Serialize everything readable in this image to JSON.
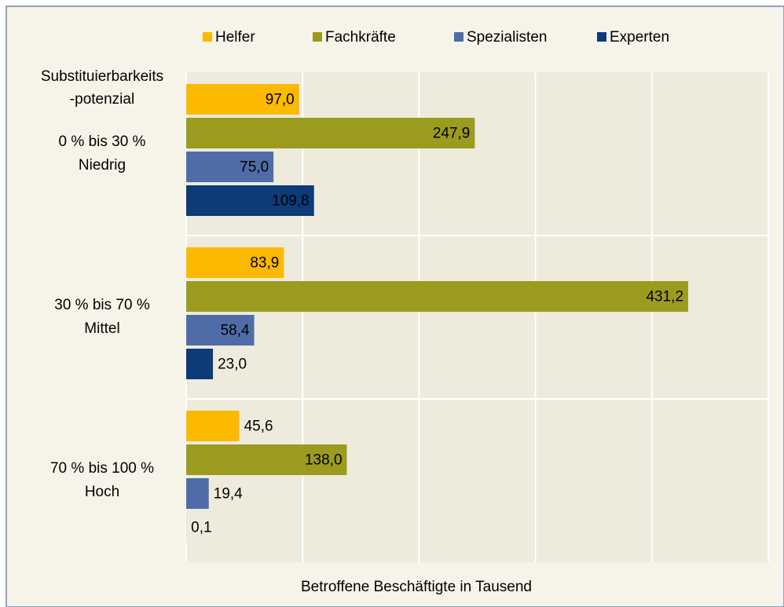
{
  "chart_data": {
    "type": "bar",
    "orientation": "horizontal",
    "y_label_lines": [
      "Substituierbarkeits",
      "-potenzial"
    ],
    "x_label": "Betroffene Beschäftigte in Tausend",
    "categories": [
      [
        "0 % bis 30 %",
        "Niedrig"
      ],
      [
        "30 % bis 70 %",
        "Mittel"
      ],
      [
        "70 % bis 100 %",
        "Hoch"
      ]
    ],
    "series": [
      {
        "name": "Helfer",
        "color": "#fbb900",
        "label_color": "#000000",
        "values": [
          97.0,
          83.9,
          45.6
        ],
        "value_labels": [
          "97,0",
          "83,9",
          "45,6"
        ]
      },
      {
        "name": "Fachkräfte",
        "color": "#9b9b1f",
        "label_color": "#000000",
        "values": [
          247.9,
          431.2,
          138.0
        ],
        "value_labels": [
          "247,9",
          "431,2",
          "138,0"
        ]
      },
      {
        "name": "Spezialisten",
        "color": "#4f6ca8",
        "label_color": "#ffffff",
        "values": [
          75.0,
          58.4,
          19.4
        ],
        "value_labels": [
          "75,0",
          "58,4",
          "19,4"
        ]
      },
      {
        "name": "Experten",
        "color": "#0d3a78",
        "label_color": "#ffffff",
        "values": [
          109.8,
          23.0,
          0.1
        ],
        "value_labels": [
          "109,8",
          "23,0",
          "0,1"
        ]
      }
    ],
    "xlim": [
      0,
      500
    ],
    "xticks": [
      0,
      100,
      200,
      300,
      400,
      500
    ],
    "grid": true
  }
}
